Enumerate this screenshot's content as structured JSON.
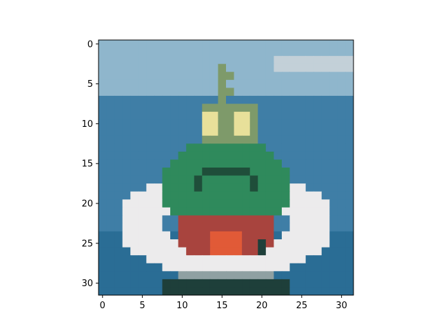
{
  "chart_data": {
    "type": "heatmap",
    "title": "",
    "xlabel": "",
    "ylabel": "",
    "xlim": [
      -0.5,
      31.5
    ],
    "ylim": [
      31.5,
      -0.5
    ],
    "grid": false,
    "x_ticks": [
      {
        "value": 0,
        "label": "0"
      },
      {
        "value": 5,
        "label": "5"
      },
      {
        "value": 10,
        "label": "10"
      },
      {
        "value": 15,
        "label": "15"
      },
      {
        "value": 20,
        "label": "20"
      },
      {
        "value": 25,
        "label": "25"
      },
      {
        "value": 30,
        "label": "30"
      }
    ],
    "y_ticks": [
      {
        "value": 0,
        "label": "0"
      },
      {
        "value": 5,
        "label": "5"
      },
      {
        "value": 10,
        "label": "10"
      },
      {
        "value": 15,
        "label": "15"
      },
      {
        "value": 20,
        "label": "20"
      },
      {
        "value": 25,
        "label": "25"
      },
      {
        "value": 30,
        "label": "30"
      }
    ],
    "colors": {
      "sky": "#8fb6cc",
      "sky_light": "#c3d0d8",
      "sea": "#3f7ea6",
      "sea_deep": "#2a6d95",
      "wake": "#ecebec",
      "hull_green": "#2f8a5c",
      "hull_dark": "#1f4e3a",
      "deck_olive": "#7e9a6a",
      "cabin_yellow": "#e8e09a",
      "hull_red": "#a8443e",
      "hull_orange": "#e15a37",
      "shadow": "#1e3f3a",
      "gray": "#8fa0a2"
    }
  }
}
